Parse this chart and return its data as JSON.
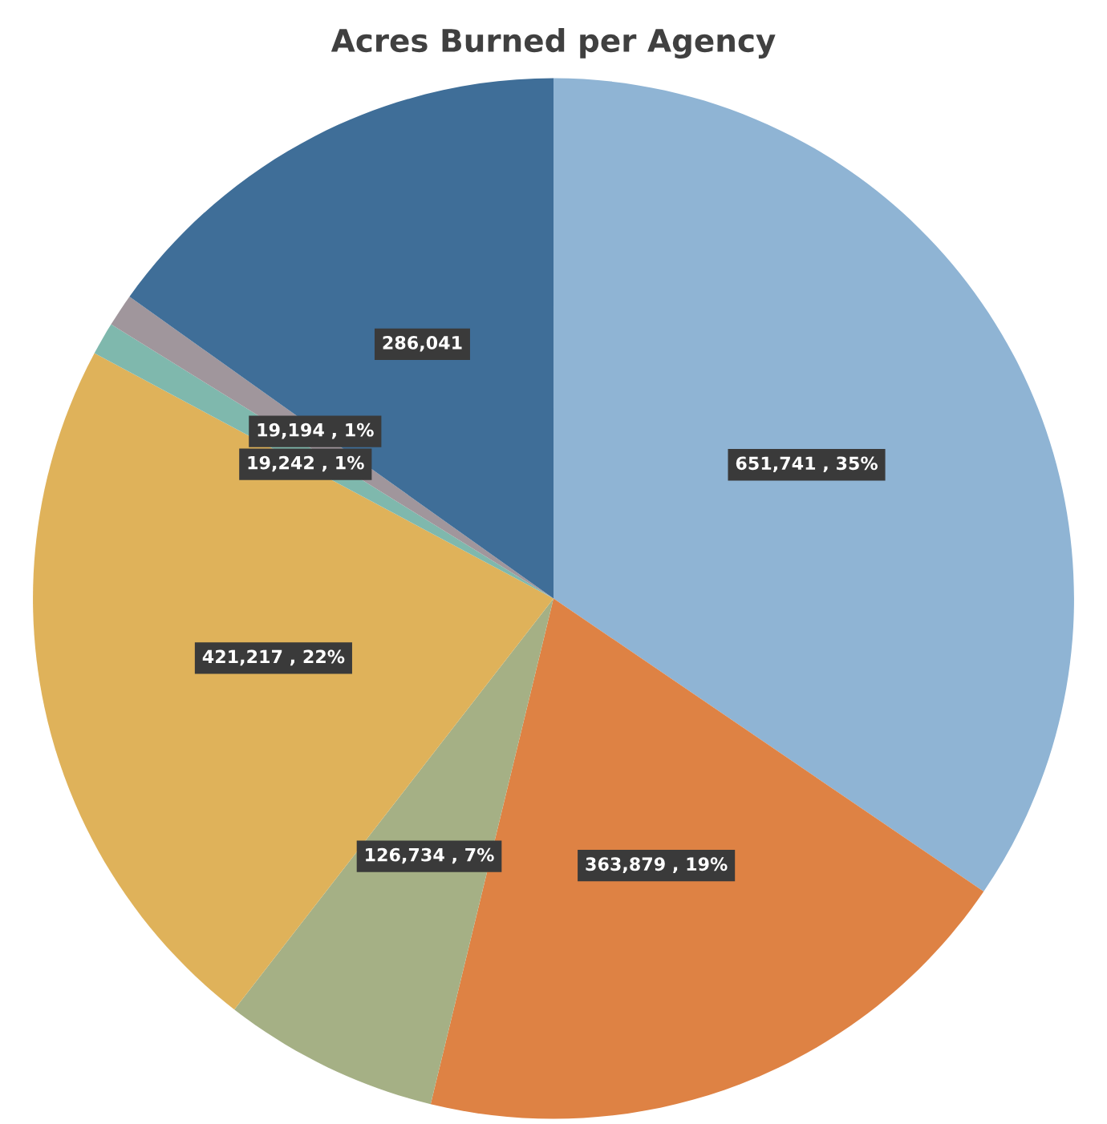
{
  "chart_data": {
    "type": "pie",
    "title": "Acres Burned per Agency",
    "categories": [
      null,
      null,
      null,
      null,
      null,
      null,
      null
    ],
    "values": [
      651741,
      363879,
      126734,
      421217,
      19242,
      19194,
      286041
    ],
    "colors": [
      "#8fb4d4",
      "#de8244",
      "#a5b085",
      "#dfb25a",
      "#7fb8ad",
      "#a0969c",
      "#3f6e98"
    ],
    "value_labels": [
      "651,741 , 35%",
      "363,879 , 19%",
      "126,734 , 7%",
      "421,217 , 22%",
      "19,242 , 1%",
      "19,194 , 1%",
      "286,041"
    ]
  }
}
